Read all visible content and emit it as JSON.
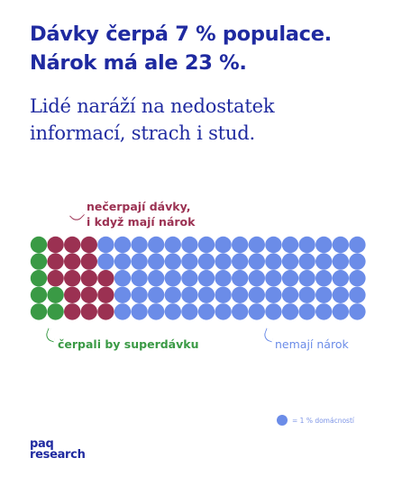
{
  "headline": {
    "line1": "Dávky čerpá 7 % populace.",
    "line2": "Nárok má ale 23 %."
  },
  "subtitle": {
    "line1": "Lidé naráží na nedostatek",
    "line2": "informací, strach i stud."
  },
  "colors": {
    "eligible_receiving": "#3a9a45",
    "eligible_not_receiving": "#9b3152",
    "not_eligible": "#6b8ce8",
    "headline": "#1f2aa0"
  },
  "chart_data": {
    "type": "waffle",
    "unit": "= 1 % domácností",
    "total": 100,
    "rows": 5,
    "columns": 20,
    "series": [
      {
        "name": "čerpali by superdávku",
        "values": [
          7
        ],
        "color": "#3a9a45"
      },
      {
        "name": "nečerpají dávky, i když mají nárok",
        "values": [
          16
        ],
        "color": "#9b3152"
      },
      {
        "name": "nemají nárok",
        "values": [
          77
        ],
        "color": "#6b8ce8"
      }
    ]
  },
  "annotations": {
    "red_line1": "nečerpají dávky,",
    "red_line2": "i když mají nárok",
    "green": "čerpali by superdávku",
    "blue": "nemají nárok"
  },
  "legend": {
    "label": "= 1 % domácností"
  },
  "logo": {
    "line1": "paq",
    "line2": "research"
  }
}
